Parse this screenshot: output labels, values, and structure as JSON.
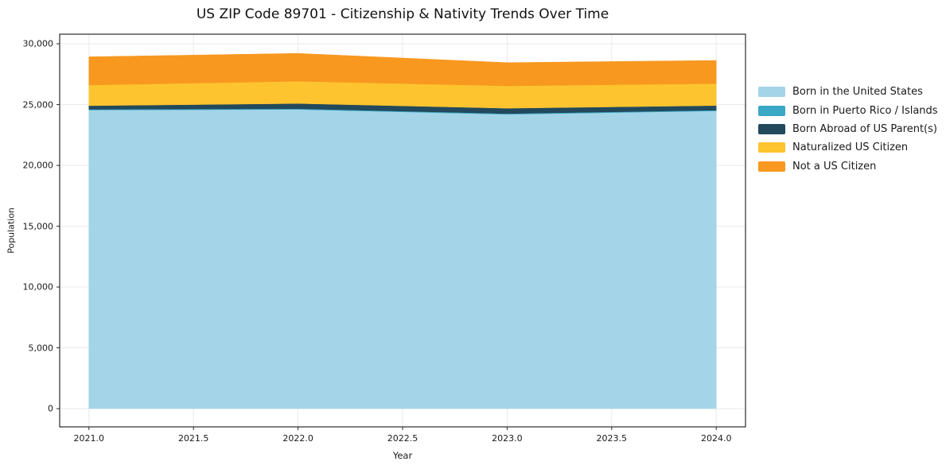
{
  "chart_data": {
    "type": "area",
    "stacked": true,
    "title": "US ZIP Code 89701 - Citizenship & Nativity Trends Over Time",
    "xlabel": "Year",
    "ylabel": "Population",
    "x": [
      2021,
      2022,
      2023,
      2024
    ],
    "series": [
      {
        "name": "Born in the United States",
        "color": "#A4D4E8",
        "values": [
          24550,
          24600,
          24200,
          24480
        ]
      },
      {
        "name": "Born in Puerto Rico / Islands",
        "color": "#3AA8C5",
        "values": [
          60,
          60,
          60,
          60
        ]
      },
      {
        "name": "Born Abroad of US Parent(s)",
        "color": "#22495C",
        "values": [
          300,
          430,
          440,
          380
        ]
      },
      {
        "name": "Naturalized US Citizen",
        "color": "#FDC42F",
        "values": [
          1700,
          1830,
          1840,
          1810
        ]
      },
      {
        "name": "Not a US Citizen",
        "color": "#F8981F",
        "values": [
          2320,
          2290,
          1910,
          1900
        ]
      }
    ],
    "stacked_totals": [
      28930,
      29210,
      28450,
      28630
    ],
    "xticks": [
      2021.0,
      2021.5,
      2022.0,
      2022.5,
      2023.0,
      2023.5,
      2024.0
    ],
    "xtick_labels": [
      "2021.0",
      "2021.5",
      "2022.0",
      "2022.5",
      "2023.0",
      "2023.5",
      "2024.0"
    ],
    "yticks": [
      0,
      5000,
      10000,
      15000,
      20000,
      25000,
      30000
    ],
    "ytick_labels": [
      "0",
      "5,000",
      "10,000",
      "15,000",
      "20,000",
      "25,000",
      "30,000"
    ],
    "xlim": [
      2020.86,
      2024.14
    ],
    "ylim": [
      -1500,
      30790
    ],
    "grid": true,
    "grid_color": "#e9e9e9",
    "axis_color": "#2b2b2b",
    "text_color": "#1a1a1a",
    "background_color": "#ffffff",
    "legend_position": "right-outside",
    "legend_frame": false
  }
}
